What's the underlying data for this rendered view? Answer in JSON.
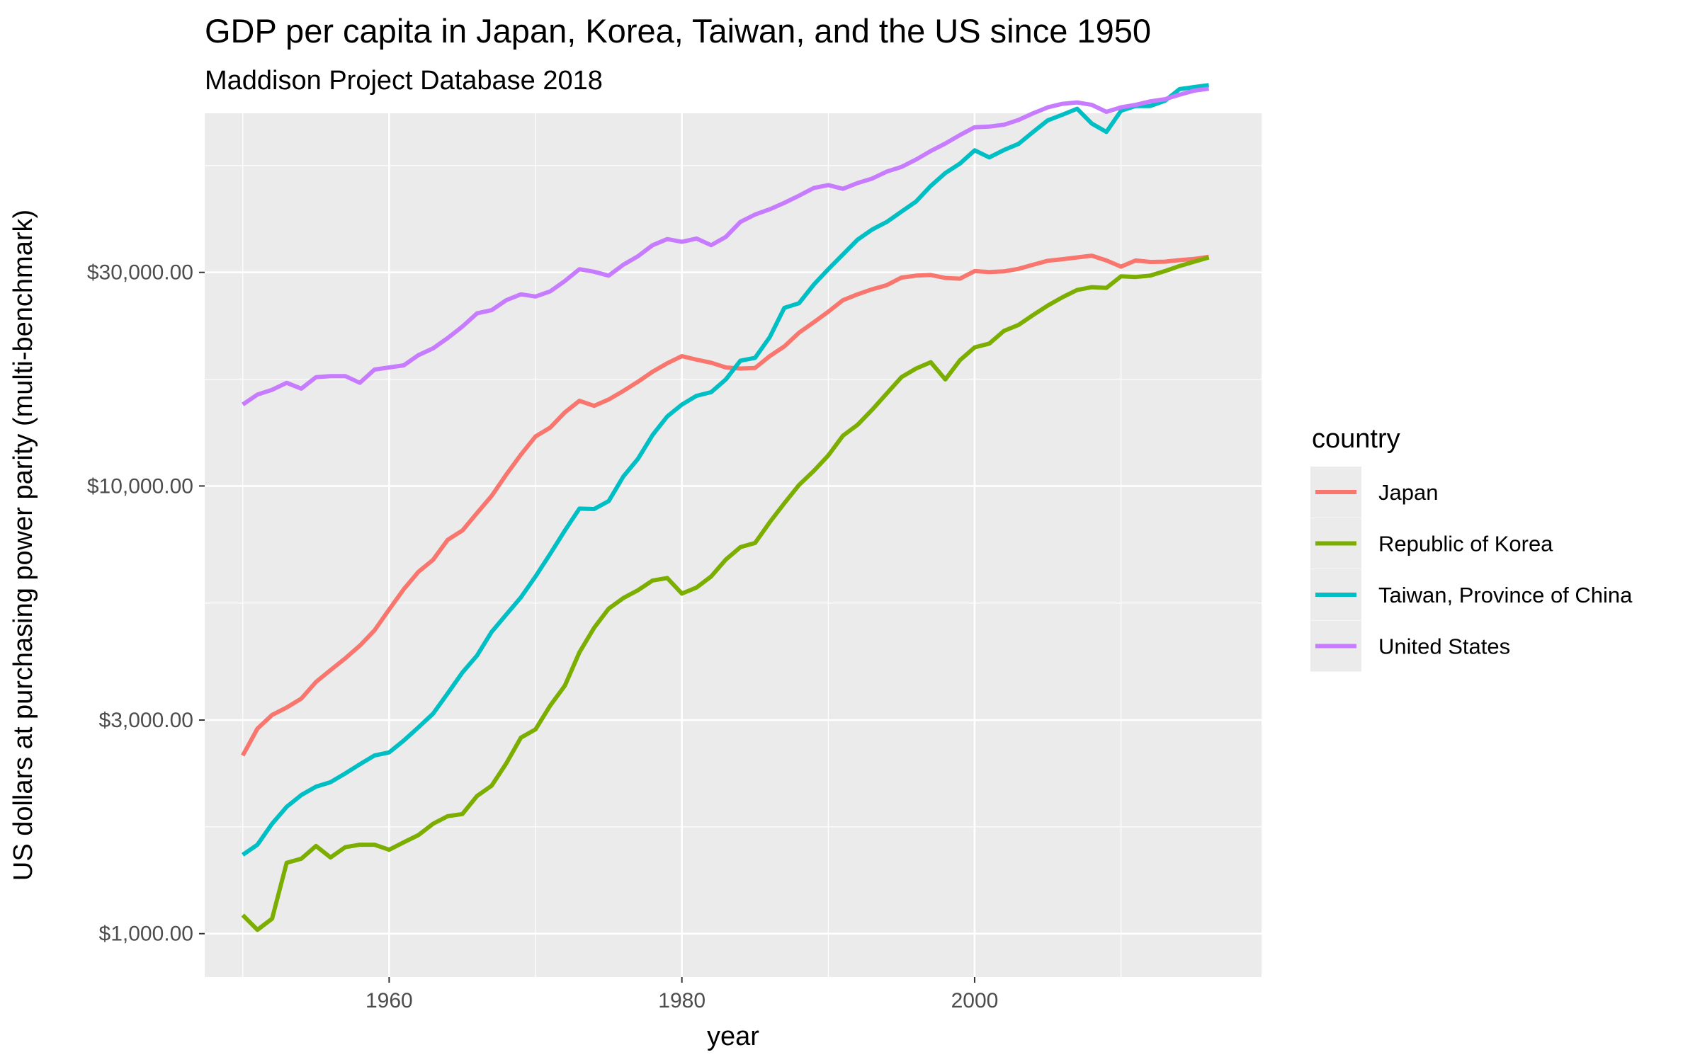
{
  "chart_data": {
    "type": "line",
    "title": "GDP per capita in Japan, Korea, Taiwan, and the US since 1950",
    "subtitle": "Maddison Project Database 2018",
    "xlabel": "year",
    "ylabel": "US dollars at purchasing power parity (multi-benchmark)",
    "y_scale": "log10",
    "xlim": [
      1947.4,
      2019.6
    ],
    "ylim": [
      800,
      68000
    ],
    "x_ticks": [
      1960,
      1980,
      2000
    ],
    "x_tick_labels": [
      "1960",
      "1980",
      "2000"
    ],
    "y_ticks": [
      1000,
      3000,
      10000,
      30000
    ],
    "y_tick_labels": [
      "$1,000.00",
      "$3,000.00",
      "$10,000.00",
      "$30,000.00"
    ],
    "grid": true,
    "legend": {
      "title": "country",
      "position": "right"
    },
    "series": [
      {
        "name": "Japan",
        "color": "#F8766D",
        "x": [
          1950,
          1951,
          1952,
          1953,
          1954,
          1955,
          1956,
          1957,
          1958,
          1959,
          1960,
          1961,
          1962,
          1963,
          1964,
          1965,
          1966,
          1967,
          1968,
          1969,
          1970,
          1971,
          1972,
          1973,
          1974,
          1975,
          1976,
          1977,
          1978,
          1979,
          1980,
          1981,
          1982,
          1983,
          1984,
          1985,
          1986,
          1987,
          1988,
          1989,
          1990,
          1991,
          1992,
          1993,
          1994,
          1995,
          1996,
          1997,
          1998,
          1999,
          2000,
          2001,
          2002,
          2003,
          2004,
          2005,
          2006,
          2007,
          2008,
          2009,
          2010,
          2011,
          2012,
          2013,
          2014,
          2015,
          2016
        ],
        "y": [
          2500,
          2870,
          3080,
          3200,
          3350,
          3650,
          3880,
          4120,
          4400,
          4760,
          5300,
          5880,
          6430,
          6840,
          7580,
          7950,
          8700,
          9500,
          10600,
          11750,
          12900,
          13500,
          14600,
          15500,
          15100,
          15600,
          16300,
          17100,
          18000,
          18800,
          19500,
          19150,
          18850,
          18400,
          18300,
          18350,
          19500,
          20500,
          22000,
          23200,
          24500,
          26000,
          26800,
          27500,
          28100,
          29200,
          29500,
          29600,
          29150,
          29050,
          30200,
          30050,
          30150,
          30550,
          31200,
          31850,
          32100,
          32400,
          32700,
          31900,
          30900,
          31900,
          31650,
          31700,
          31950,
          32150,
          32500
        ]
      },
      {
        "name": "Republic of Korea",
        "color": "#7CAE00",
        "x": [
          1950,
          1951,
          1952,
          1953,
          1954,
          1955,
          1956,
          1957,
          1958,
          1959,
          1960,
          1961,
          1962,
          1963,
          1964,
          1965,
          1966,
          1967,
          1968,
          1969,
          1970,
          1971,
          1972,
          1973,
          1974,
          1975,
          1976,
          1977,
          1978,
          1979,
          1980,
          1981,
          1982,
          1983,
          1984,
          1985,
          1986,
          1987,
          1988,
          1989,
          1990,
          1991,
          1992,
          1993,
          1994,
          1995,
          1996,
          1997,
          1998,
          1999,
          2000,
          2001,
          2002,
          2003,
          2004,
          2005,
          2006,
          2007,
          2008,
          2009,
          2010,
          2011,
          2012,
          2013,
          2014,
          2015,
          2016
        ],
        "y": [
          1100,
          1020,
          1080,
          1440,
          1470,
          1570,
          1480,
          1560,
          1580,
          1580,
          1540,
          1600,
          1660,
          1760,
          1830,
          1850,
          2030,
          2140,
          2400,
          2740,
          2860,
          3230,
          3580,
          4250,
          4820,
          5320,
          5620,
          5850,
          6150,
          6230,
          5750,
          5930,
          6280,
          6850,
          7300,
          7460,
          8300,
          9150,
          10050,
          10800,
          11700,
          12950,
          13700,
          14800,
          16100,
          17500,
          18300,
          18900,
          17300,
          19100,
          20400,
          20800,
          22200,
          22900,
          24100,
          25300,
          26400,
          27400,
          27800,
          27700,
          29400,
          29300,
          29500,
          30200,
          31000,
          31700,
          32400
        ]
      },
      {
        "name": "Taiwan, Province of China",
        "color": "#00BFC4",
        "x": [
          1950,
          1951,
          1952,
          1953,
          1954,
          1955,
          1956,
          1957,
          1958,
          1959,
          1960,
          1961,
          1962,
          1963,
          1964,
          1965,
          1966,
          1967,
          1968,
          1969,
          1970,
          1971,
          1972,
          1973,
          1974,
          1975,
          1976,
          1977,
          1978,
          1979,
          1980,
          1981,
          1982,
          1983,
          1984,
          1985,
          1986,
          1987,
          1988,
          1989,
          1990,
          1991,
          1992,
          1993,
          1994,
          1995,
          1996,
          1997,
          1998,
          1999,
          2000,
          2001,
          2002,
          2003,
          2004,
          2005,
          2006,
          2007,
          2008,
          2009,
          2010,
          2011,
          2012,
          2013,
          2014,
          2015,
          2016
        ],
        "y": [
          1500,
          1580,
          1760,
          1920,
          2040,
          2130,
          2180,
          2280,
          2390,
          2500,
          2540,
          2700,
          2890,
          3100,
          3440,
          3830,
          4180,
          4720,
          5160,
          5640,
          6280,
          7050,
          7950,
          8900,
          8880,
          9250,
          10500,
          11500,
          13000,
          14300,
          15200,
          15900,
          16200,
          17300,
          19050,
          19330,
          21500,
          25000,
          25600,
          28150,
          30500,
          32900,
          35500,
          37400,
          38900,
          41000,
          43200,
          46800,
          50000,
          52500,
          56200,
          54200,
          56300,
          58100,
          61800,
          65600,
          67500,
          69600,
          64500,
          61800,
          68900,
          70600,
          70600,
          72500,
          77000,
          77800,
          78600
        ]
      },
      {
        "name": "United States",
        "color": "#C77CFF",
        "x": [
          1950,
          1951,
          1952,
          1953,
          1954,
          1955,
          1956,
          1957,
          1958,
          1959,
          1960,
          1961,
          1962,
          1963,
          1964,
          1965,
          1966,
          1967,
          1968,
          1969,
          1970,
          1971,
          1972,
          1973,
          1974,
          1975,
          1976,
          1977,
          1978,
          1979,
          1980,
          1981,
          1982,
          1983,
          1984,
          1985,
          1986,
          1987,
          1988,
          1989,
          1990,
          1991,
          1992,
          1993,
          1994,
          1995,
          1996,
          1997,
          1998,
          1999,
          2000,
          2001,
          2002,
          2003,
          2004,
          2005,
          2006,
          2007,
          2008,
          2009,
          2010,
          2011,
          2012,
          2013,
          2014,
          2015,
          2016
        ],
        "y": [
          15200,
          16000,
          16400,
          17000,
          16500,
          17500,
          17600,
          17600,
          17000,
          18200,
          18400,
          18600,
          19600,
          20300,
          21400,
          22700,
          24300,
          24700,
          26000,
          26800,
          26500,
          27200,
          28700,
          30500,
          30100,
          29500,
          31200,
          32600,
          34500,
          35600,
          35100,
          35700,
          34500,
          36000,
          38900,
          40400,
          41500,
          42900,
          44500,
          46300,
          47000,
          46100,
          47500,
          48600,
          50400,
          51600,
          53600,
          56000,
          58200,
          60800,
          63300,
          63500,
          64100,
          65700,
          68000,
          70100,
          71400,
          71900,
          71000,
          68500,
          70100,
          71000,
          72300,
          73100,
          74800,
          76400,
          77200
        ]
      }
    ]
  }
}
